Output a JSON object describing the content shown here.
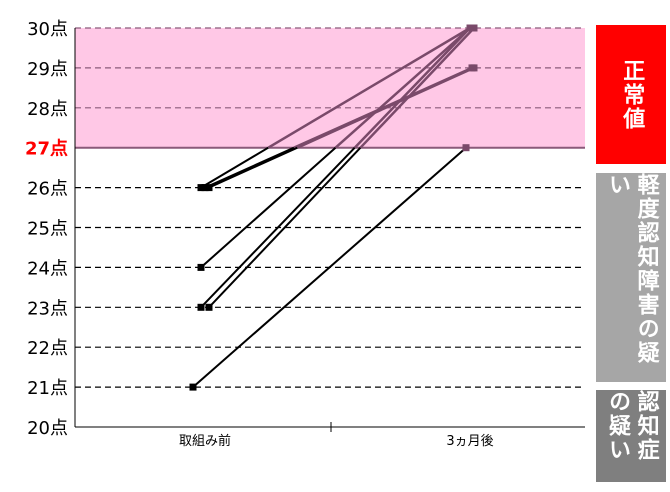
{
  "chart_data": {
    "type": "line",
    "categories": [
      "取組み前",
      "3ヵ月後"
    ],
    "ylim": [
      20,
      30
    ],
    "yticks": [
      "20点",
      "21点",
      "22点",
      "23点",
      "24点",
      "25点",
      "26点",
      "27点",
      "28点",
      "29点",
      "30点"
    ],
    "highlight_tick": "27点",
    "band": {
      "from": 27,
      "to": 30,
      "color": "#ffc8e6"
    },
    "grid": true,
    "series": [
      {
        "values": [
          26,
          30
        ]
      },
      {
        "values": [
          26,
          29
        ]
      },
      {
        "values": [
          26,
          29
        ]
      },
      {
        "values": [
          24,
          30
        ]
      },
      {
        "values": [
          23,
          30
        ]
      },
      {
        "values": [
          23,
          30
        ]
      },
      {
        "values": [
          21,
          27
        ]
      }
    ]
  },
  "side_labels": [
    {
      "text": "正常値",
      "color": "#ff0000"
    },
    {
      "text": "軽度認知障害の疑い",
      "color": "#a6a6a6"
    },
    {
      "text": "認知症の疑い",
      "color": "#7f7f7f"
    }
  ]
}
